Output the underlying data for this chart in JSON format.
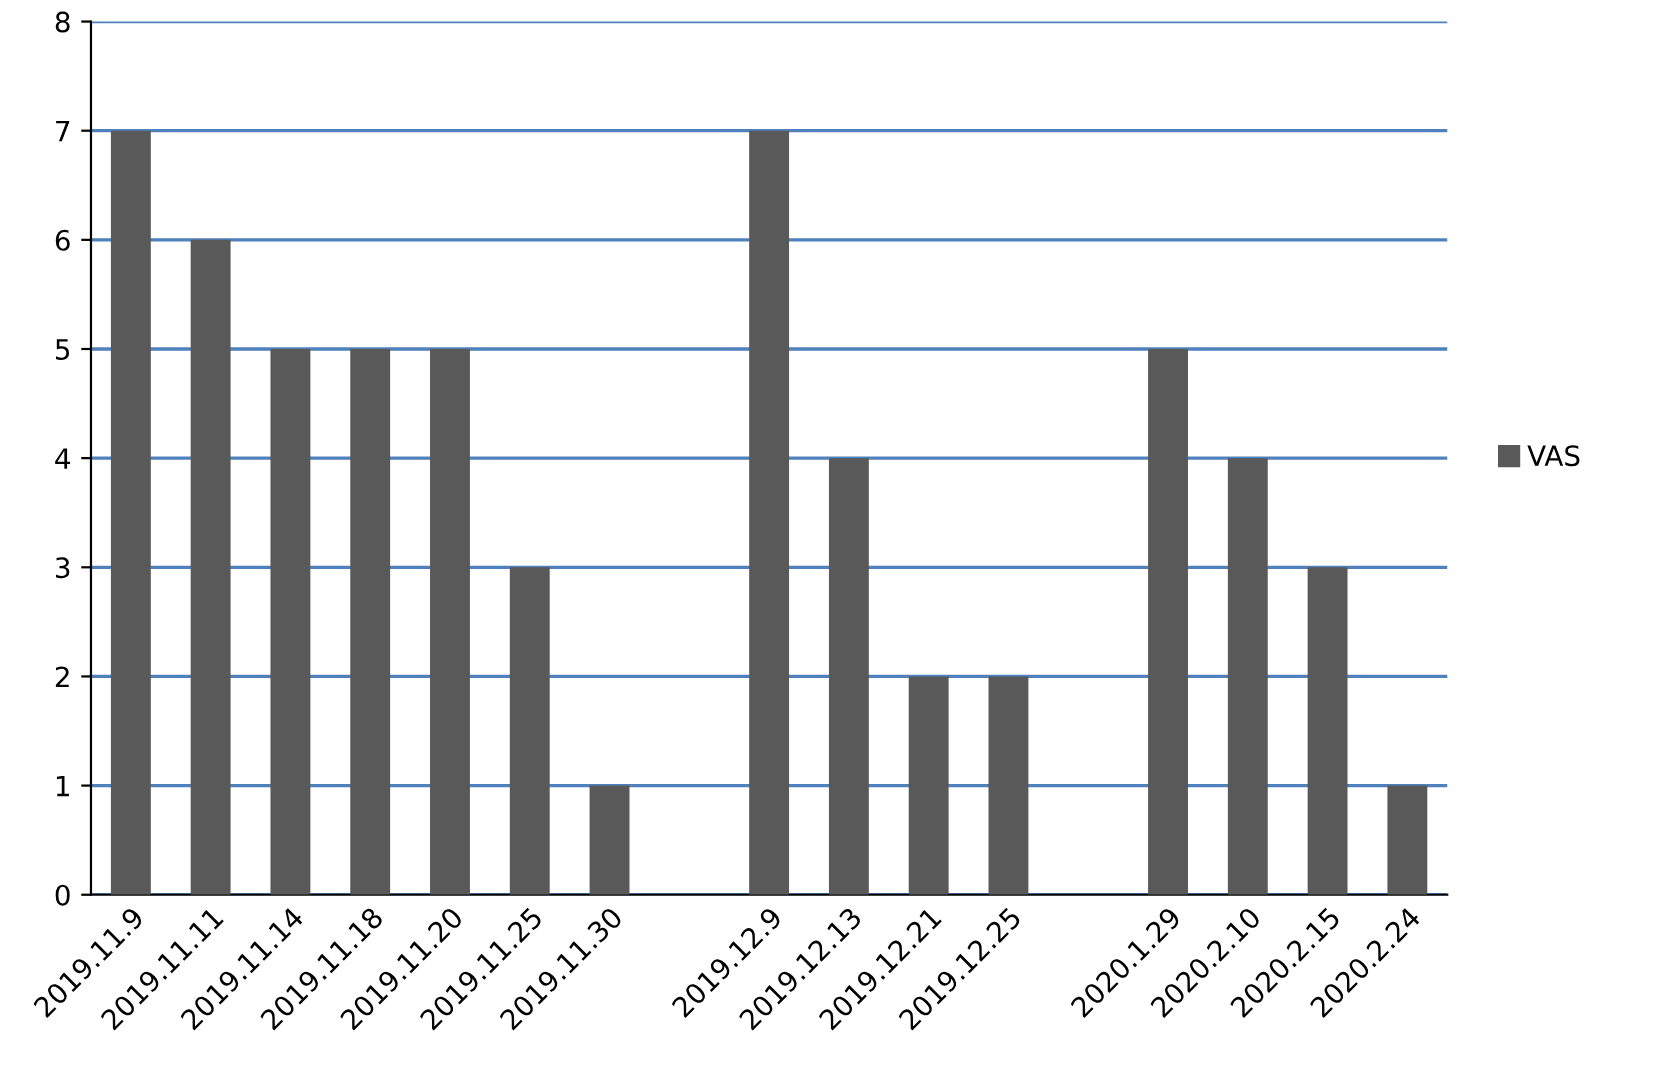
{
  "chart_data": {
    "type": "bar",
    "categories": [
      "2019.11.9",
      "2019.11.11",
      "2019.11.14",
      "2019.11.18",
      "2019.11.20",
      "2019.11.25",
      "2019.11.30",
      null,
      "2019.12.9",
      "2019.12.13",
      "2019.12.21",
      "2019.12.25",
      null,
      "2020.1.29",
      "2020.2.10",
      "2020.2.15",
      "2020.2.24"
    ],
    "series": [
      {
        "name": "VAS",
        "color": "#595959",
        "values": [
          7,
          6,
          5,
          5,
          5,
          3,
          1,
          null,
          7,
          4,
          2,
          2,
          null,
          5,
          4,
          3,
          1
        ]
      }
    ],
    "ylim": [
      0,
      8
    ],
    "yticks": [
      0,
      1,
      2,
      3,
      4,
      5,
      6,
      7,
      8
    ],
    "grid": "y",
    "legend": "right"
  }
}
